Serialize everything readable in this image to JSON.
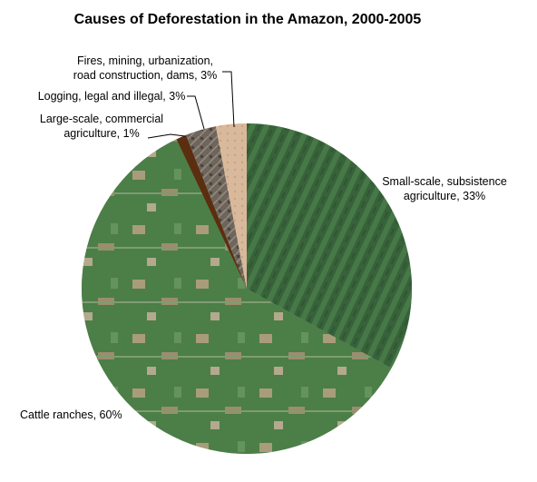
{
  "chart_data": {
    "type": "pie",
    "title": "Causes of Deforestation in the Amazon, 2000-2005",
    "slices": [
      {
        "label_lines": [
          "Small-scale, subsistence",
          "agriculture, 33%"
        ],
        "value": 33,
        "color": "#3c6a3e",
        "texture": "crop-rows"
      },
      {
        "label_lines": [
          "Cattle ranches, 60%"
        ],
        "value": 60,
        "color": "#4e7f4a",
        "texture": "cleared-patches"
      },
      {
        "label_lines": [
          "Large-scale, commercial",
          "agriculture, 1%"
        ],
        "value": 1,
        "color": "#5a2e0f",
        "texture": "plain"
      },
      {
        "label_lines": [
          "Logging, legal and illegal, 3%"
        ],
        "value": 3,
        "color": "#6b6259",
        "texture": "roads"
      },
      {
        "label_lines": [
          "Fires, mining, urbanization,",
          "road construction, dams, 3%"
        ],
        "value": 3,
        "color": "#d8b99a",
        "texture": "burned"
      }
    ],
    "legend": "none",
    "start_angle": "top",
    "direction": "clockwise"
  }
}
